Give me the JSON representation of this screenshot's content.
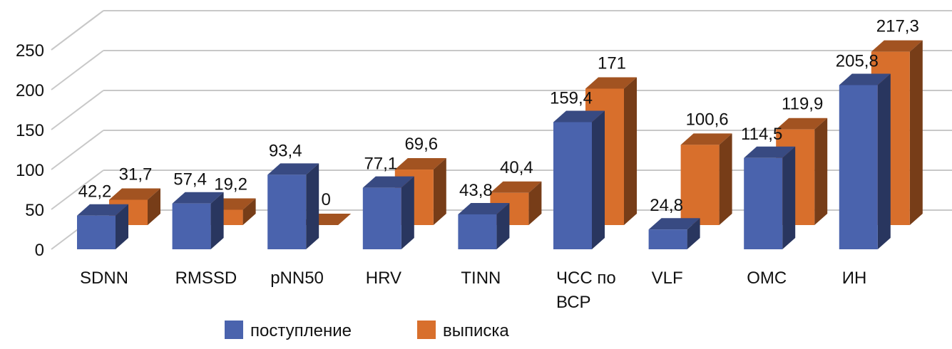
{
  "chart_data": {
    "type": "bar",
    "subtype": "3d-clustered",
    "title": "",
    "xlabel": "",
    "ylabel": "",
    "ylim": [
      0,
      250
    ],
    "yticks": [
      "0",
      "50",
      "100",
      "150",
      "200",
      "250"
    ],
    "ytick_values": [
      0,
      50,
      100,
      150,
      200,
      250
    ],
    "grid": true,
    "legend_position": "bottom",
    "categories": [
      [
        "SDNN"
      ],
      [
        "RMSSD"
      ],
      [
        "pNN50"
      ],
      [
        "HRV"
      ],
      [
        "TINN"
      ],
      [
        "ЧСС по",
        "ВСР"
      ],
      [
        "VLF"
      ],
      [
        "ОМС"
      ],
      [
        "ИН"
      ]
    ],
    "series": [
      {
        "name": "поступление",
        "color": "#4a63ad",
        "values": [
          42.2,
          57.4,
          93.4,
          77.1,
          43.8,
          159.4,
          24.8,
          114.5,
          205.8
        ],
        "labels": [
          "42,2",
          "57,4",
          "93,4",
          "77,1",
          "43,8",
          "159,4",
          "24,8",
          "114,5",
          "205,8"
        ]
      },
      {
        "name": "выписка",
        "color": "#d86f2c",
        "values": [
          31.7,
          19.2,
          0,
          69.6,
          40.4,
          171,
          100.6,
          119.9,
          217.3
        ],
        "labels": [
          "31,7",
          "19,2",
          "0",
          "69,6",
          "40,4",
          "171",
          "100,6",
          "119,9",
          "217,3"
        ]
      }
    ]
  }
}
